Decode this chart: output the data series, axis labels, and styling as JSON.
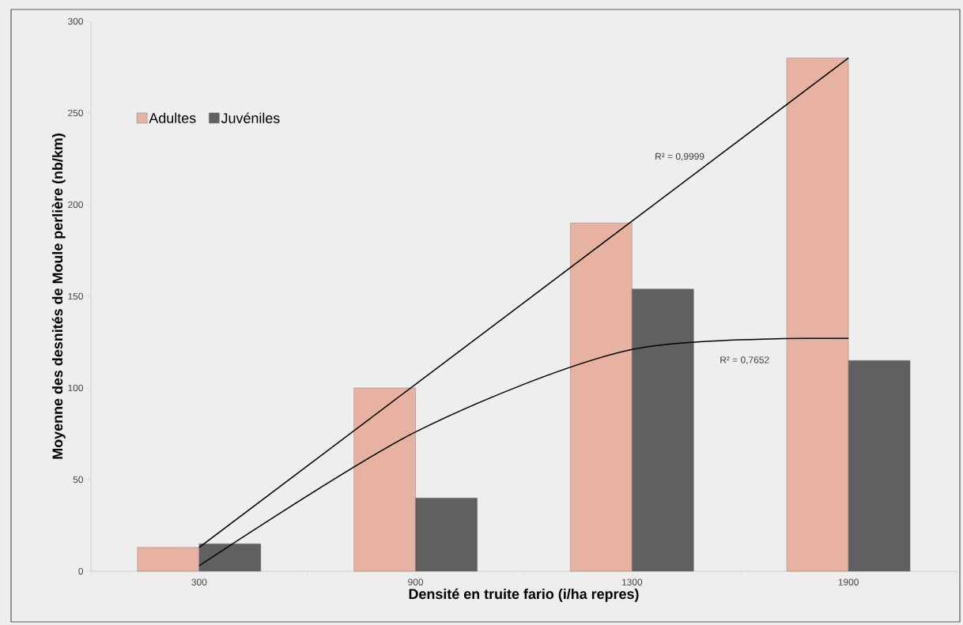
{
  "chart_data": {
    "type": "bar",
    "xlabel": "Densité en truite fario (i/ha repres)",
    "ylabel": "Moyenne des desnités de Moule perlière (nb/km)",
    "categories": [
      "300",
      "900",
      "1300",
      "1900"
    ],
    "series": [
      {
        "name": "Adultes",
        "color": "#e8b2a2",
        "values": [
          13,
          100,
          190,
          280
        ]
      },
      {
        "name": "Juvéniles",
        "color": "#5e6062",
        "values": [
          15,
          40,
          154,
          115
        ]
      },
      {
        "type": "line",
        "color": "#000000",
        "values": [
          13,
          102,
          191,
          280
        ]
      },
      {
        "type": "line",
        "color": "#000000",
        "values": [
          3,
          76,
          121,
          127
        ]
      }
    ],
    "ylim": [
      0,
      300
    ],
    "yticks": [
      0,
      50,
      100,
      150,
      200,
      250,
      300
    ],
    "legend": "top left",
    "annotations": [
      "R² = 0,9999",
      "R² = 0,7652"
    ]
  }
}
